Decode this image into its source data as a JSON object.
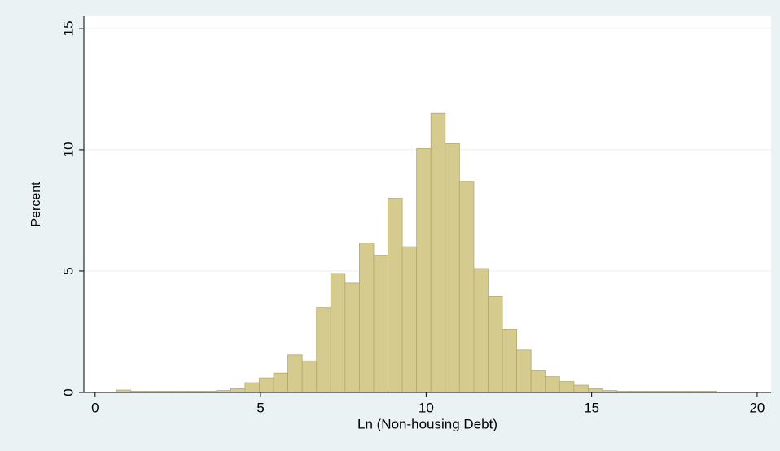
{
  "chart_data": {
    "type": "histogram",
    "x_label": "Ln (Non-housing Debt)",
    "y_label": "Percent",
    "bins": [
      0.64,
      1.072,
      1.504,
      1.936,
      2.368,
      2.8,
      3.232,
      3.664,
      4.096,
      4.528,
      4.96,
      5.392,
      5.824,
      6.256,
      6.688,
      7.12,
      7.552,
      7.984,
      8.416,
      8.848,
      9.28,
      9.712,
      10.144,
      10.576,
      11.008,
      11.44,
      11.872,
      12.304,
      12.736,
      13.168,
      13.6,
      14.032,
      14.464,
      14.896,
      15.328,
      15.76,
      16.192,
      16.624,
      17.056,
      17.488,
      17.92,
      18.352,
      18.784
    ],
    "values": [
      0.1,
      0.05,
      0.05,
      0.05,
      0.05,
      0.05,
      0.05,
      0.08,
      0.15,
      0.4,
      0.6,
      0.8,
      1.55,
      1.3,
      3.5,
      4.9,
      4.5,
      6.15,
      5.65,
      8.0,
      6.0,
      10.05,
      11.5,
      10.25,
      8.7,
      5.1,
      3.95,
      2.6,
      1.75,
      0.9,
      0.65,
      0.45,
      0.3,
      0.15,
      0.08,
      0.05,
      0.05,
      0.05,
      0.05,
      0.05,
      0.05,
      0.05
    ],
    "color": "#d6cb8e",
    "xlim": [
      -0.34,
      20.42
    ],
    "xticks": [
      0,
      5,
      10,
      15,
      20
    ],
    "ylim": [
      0,
      15.5
    ],
    "yticks": [
      0,
      5,
      10,
      15
    ],
    "grid": true
  }
}
